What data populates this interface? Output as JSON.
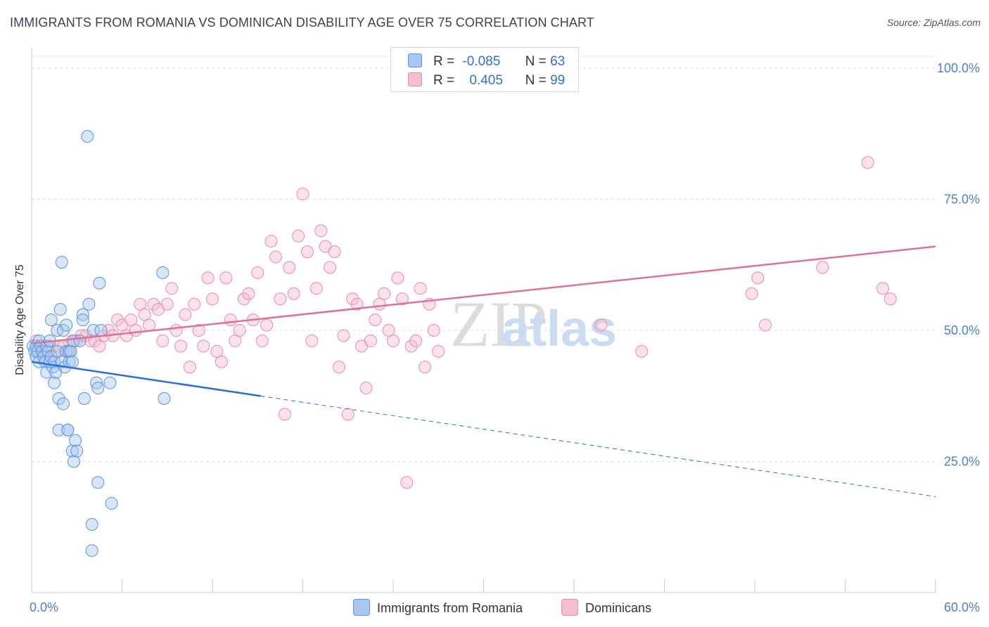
{
  "header": {
    "title": "IMMIGRANTS FROM ROMANIA VS DOMINICAN DISABILITY AGE OVER 75 CORRELATION CHART",
    "source": "Source: ZipAtlas.com"
  },
  "legend": {
    "rows": [
      {
        "r_label": "R =",
        "r_value": "-0.085",
        "n_label": "N =",
        "n_value": "63"
      },
      {
        "r_label": "R =",
        "r_value": "0.405",
        "n_label": "N =",
        "n_value": "99"
      }
    ]
  },
  "bottom_legend": {
    "series_a": "Immigrants from Romania",
    "series_b": "Dominicans"
  },
  "watermark": {
    "part1": "ZIP",
    "part2": "atlas"
  },
  "colors": {
    "blue_fill": "#a9c7f0",
    "blue_stroke": "#5b93de",
    "blue_line": "#2a6fd6",
    "pink_fill": "#f6bfd0",
    "pink_stroke": "#e98aa8",
    "pink_line": "#e0709a",
    "tick_label": "#4f7fd0",
    "grid": "#dcdcdc"
  },
  "chart_data": {
    "type": "scatter",
    "title": "IMMIGRANTS FROM ROMANIA VS DOMINICAN DISABILITY AGE OVER 75 CORRELATION CHART",
    "xlabel": "",
    "ylabel": "Disability Age Over 75",
    "xlim": [
      0,
      60
    ],
    "ylim": [
      0,
      105
    ],
    "x_tick_labels": [
      "0.0%",
      "60.0%"
    ],
    "y_ticks": [
      25,
      50,
      75,
      100
    ],
    "y_tick_labels": [
      "25.0%",
      "50.0%",
      "75.0%",
      "100.0%"
    ],
    "series": [
      {
        "name": "Immigrants from Romania",
        "R": -0.085,
        "N": 63,
        "trend": {
          "x0": 0,
          "y0": 44.0,
          "x_solid_end": 15.2,
          "x_end": 60,
          "y_end": 18.3
        },
        "points": [
          [
            0.1,
            47
          ],
          [
            0.2,
            46
          ],
          [
            0.3,
            45
          ],
          [
            0.3,
            47
          ],
          [
            0.4,
            46
          ],
          [
            0.5,
            44
          ],
          [
            0.5,
            48
          ],
          [
            0.6,
            47
          ],
          [
            0.7,
            46
          ],
          [
            0.8,
            45
          ],
          [
            0.9,
            44
          ],
          [
            1.0,
            47
          ],
          [
            1.0,
            42
          ],
          [
            1.1,
            46
          ],
          [
            1.2,
            48
          ],
          [
            1.2,
            44
          ],
          [
            1.3,
            45
          ],
          [
            1.3,
            52
          ],
          [
            1.4,
            43
          ],
          [
            1.5,
            40
          ],
          [
            1.5,
            44
          ],
          [
            1.6,
            42
          ],
          [
            1.7,
            50
          ],
          [
            1.7,
            46
          ],
          [
            1.8,
            37
          ],
          [
            1.8,
            31
          ],
          [
            1.9,
            54
          ],
          [
            2.0,
            63
          ],
          [
            2.0,
            44
          ],
          [
            2.1,
            50
          ],
          [
            2.1,
            36
          ],
          [
            2.2,
            43
          ],
          [
            2.3,
            46
          ],
          [
            2.3,
            51
          ],
          [
            2.4,
            31
          ],
          [
            2.4,
            31
          ],
          [
            2.5,
            46
          ],
          [
            2.5,
            44
          ],
          [
            2.6,
            46
          ],
          [
            2.7,
            44
          ],
          [
            2.7,
            27
          ],
          [
            2.8,
            48
          ],
          [
            2.8,
            25
          ],
          [
            2.9,
            29
          ],
          [
            3.0,
            27
          ],
          [
            3.2,
            48
          ],
          [
            3.4,
            53
          ],
          [
            3.4,
            52
          ],
          [
            3.5,
            37
          ],
          [
            3.7,
            87
          ],
          [
            3.8,
            55
          ],
          [
            4.1,
            50
          ],
          [
            4.3,
            40
          ],
          [
            4.4,
            21
          ],
          [
            4.4,
            39
          ],
          [
            4.5,
            59
          ],
          [
            4.6,
            50
          ],
          [
            5.2,
            40
          ],
          [
            5.3,
            17
          ],
          [
            8.7,
            61
          ],
          [
            8.8,
            37
          ],
          [
            4.0,
            13
          ],
          [
            4.0,
            8
          ]
        ]
      },
      {
        "name": "Dominicans",
        "R": 0.405,
        "N": 99,
        "trend": {
          "x0": 0,
          "y0": 47.5,
          "x_end": 60,
          "y_end": 66.0
        },
        "points": [
          [
            0.3,
            48
          ],
          [
            0.6,
            47
          ],
          [
            0.9,
            46
          ],
          [
            1.2,
            47
          ],
          [
            1.5,
            45
          ],
          [
            1.8,
            47
          ],
          [
            2.1,
            47
          ],
          [
            2.4,
            46
          ],
          [
            2.7,
            48
          ],
          [
            3.0,
            48
          ],
          [
            3.3,
            49
          ],
          [
            3.6,
            49
          ],
          [
            3.9,
            48
          ],
          [
            4.2,
            48
          ],
          [
            4.5,
            47
          ],
          [
            4.8,
            49
          ],
          [
            5.1,
            50
          ],
          [
            5.4,
            49
          ],
          [
            5.7,
            52
          ],
          [
            6.0,
            51
          ],
          [
            6.3,
            49
          ],
          [
            6.6,
            52
          ],
          [
            6.9,
            50
          ],
          [
            7.2,
            55
          ],
          [
            7.5,
            53
          ],
          [
            7.8,
            51
          ],
          [
            8.1,
            55
          ],
          [
            8.4,
            54
          ],
          [
            8.7,
            48
          ],
          [
            9.0,
            55
          ],
          [
            9.3,
            58
          ],
          [
            9.6,
            50
          ],
          [
            9.9,
            47
          ],
          [
            10.2,
            53
          ],
          [
            10.5,
            43
          ],
          [
            10.8,
            55
          ],
          [
            11.1,
            50
          ],
          [
            11.4,
            47
          ],
          [
            11.7,
            60
          ],
          [
            12.0,
            56
          ],
          [
            12.3,
            46
          ],
          [
            12.6,
            44
          ],
          [
            12.9,
            60
          ],
          [
            13.2,
            52
          ],
          [
            13.5,
            48
          ],
          [
            13.8,
            50
          ],
          [
            14.1,
            56
          ],
          [
            14.4,
            57
          ],
          [
            14.7,
            52
          ],
          [
            15.0,
            61
          ],
          [
            15.3,
            48
          ],
          [
            15.6,
            51
          ],
          [
            15.9,
            67
          ],
          [
            16.2,
            64
          ],
          [
            16.5,
            56
          ],
          [
            16.8,
            34
          ],
          [
            17.1,
            62
          ],
          [
            17.4,
            57
          ],
          [
            17.7,
            68
          ],
          [
            18.0,
            76
          ],
          [
            18.3,
            65
          ],
          [
            18.6,
            48
          ],
          [
            18.9,
            58
          ],
          [
            19.2,
            69
          ],
          [
            19.5,
            66
          ],
          [
            19.8,
            62
          ],
          [
            20.1,
            65
          ],
          [
            20.4,
            43
          ],
          [
            20.7,
            49
          ],
          [
            21.0,
            34
          ],
          [
            21.3,
            56
          ],
          [
            21.6,
            55
          ],
          [
            21.9,
            47
          ],
          [
            22.2,
            39
          ],
          [
            22.5,
            48
          ],
          [
            22.8,
            52
          ],
          [
            23.1,
            55
          ],
          [
            23.4,
            57
          ],
          [
            23.7,
            50
          ],
          [
            24.0,
            48
          ],
          [
            24.3,
            60
          ],
          [
            24.6,
            56
          ],
          [
            24.9,
            21
          ],
          [
            25.2,
            47
          ],
          [
            25.5,
            48
          ],
          [
            25.8,
            58
          ],
          [
            26.1,
            43
          ],
          [
            26.4,
            55
          ],
          [
            26.7,
            50
          ],
          [
            27.0,
            46
          ],
          [
            37.8,
            51
          ],
          [
            40.5,
            46
          ],
          [
            47.8,
            57
          ],
          [
            48.2,
            60
          ],
          [
            48.7,
            51
          ],
          [
            52.5,
            62
          ],
          [
            55.5,
            82
          ],
          [
            56.5,
            58
          ],
          [
            57.0,
            56
          ]
        ]
      }
    ]
  }
}
